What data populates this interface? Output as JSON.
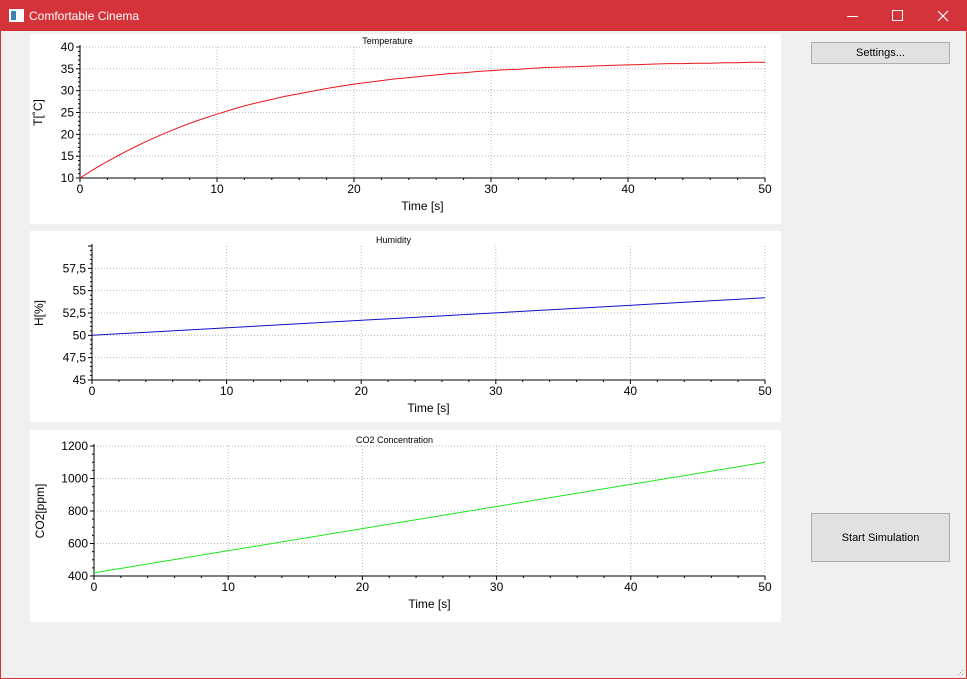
{
  "window": {
    "title": "Comfortable Cinema",
    "accent": "#d5333a"
  },
  "titlebar_icons": [
    "app-icon",
    "minimize-icon",
    "maximize-icon",
    "close-icon"
  ],
  "buttons": {
    "settings_label": "Settings...",
    "start_label": "Start Simulation"
  },
  "chart_data": [
    {
      "type": "line",
      "title": "Temperature",
      "xlabel": "Time [s]",
      "ylabel": "T[˚C]",
      "xlim": [
        0,
        50
      ],
      "ylim": [
        10,
        40
      ],
      "xticks": [
        "0",
        "10",
        "20",
        "30",
        "40",
        "50"
      ],
      "yticks": [
        "10",
        "15",
        "20",
        "25",
        "30",
        "35",
        "40"
      ],
      "grid": true,
      "color": "#e8161d",
      "x": [
        0,
        1,
        2,
        3,
        4,
        5,
        6,
        7,
        8,
        9,
        10,
        11,
        12,
        13,
        14,
        15,
        16,
        17,
        18,
        19,
        20,
        21,
        22,
        23,
        24,
        25,
        26,
        27,
        28,
        29,
        30,
        31,
        32,
        33,
        34,
        35,
        36,
        37,
        38,
        39,
        40,
        41,
        42,
        43,
        44,
        45,
        46,
        47,
        48,
        49,
        50
      ],
      "y": [
        10.0,
        12.0,
        13.8,
        15.5,
        17.1,
        18.6,
        20.0,
        21.3,
        22.5,
        23.6,
        24.6,
        25.6,
        26.5,
        27.3,
        28.0,
        28.7,
        29.3,
        29.9,
        30.5,
        31.0,
        31.5,
        31.9,
        32.3,
        32.7,
        33.0,
        33.3,
        33.6,
        33.9,
        34.1,
        34.4,
        34.6,
        34.8,
        34.9,
        35.1,
        35.3,
        35.4,
        35.5,
        35.6,
        35.7,
        35.8,
        35.9,
        36.0,
        36.1,
        36.2,
        36.2,
        36.3,
        36.3,
        36.4,
        36.4,
        36.5,
        36.5
      ]
    },
    {
      "type": "line",
      "title": "Humidity",
      "xlabel": "Time [s]",
      "ylabel": "H[%]",
      "xlim": [
        0,
        50
      ],
      "ylim": [
        45,
        60
      ],
      "xticks": [
        "0",
        "10",
        "20",
        "30",
        "40",
        "50"
      ],
      "yticks": [
        "45",
        "47,5",
        "50",
        "52,5",
        "55",
        "57,5"
      ],
      "grid": true,
      "color": "#1010c8",
      "x": [
        0,
        50
      ],
      "y": [
        50.0,
        54.2
      ]
    },
    {
      "type": "line",
      "title": "CO2 Concentration",
      "xlabel": "Time [s]",
      "ylabel": "CO2[ppm]",
      "xlim": [
        0,
        50
      ],
      "ylim": [
        400,
        1200
      ],
      "xticks": [
        "0",
        "10",
        "20",
        "30",
        "40",
        "50"
      ],
      "yticks": [
        "400",
        "600",
        "800",
        "1000",
        "1200"
      ],
      "grid": true,
      "color": "#18e818",
      "x": [
        0,
        50
      ],
      "y": [
        420,
        1100
      ]
    }
  ]
}
